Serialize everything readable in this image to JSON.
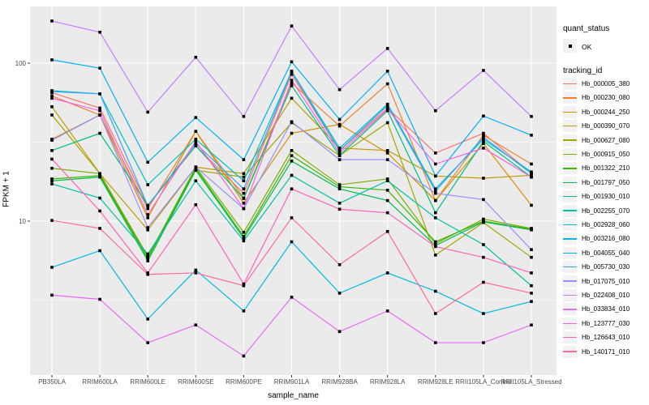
{
  "chart_data": {
    "type": "line",
    "title": "",
    "xlabel": "sample_name",
    "ylabel": "FPKM + 1",
    "yscale": "log10",
    "ylim": [
      1.05,
      230
    ],
    "grid": true,
    "legend_position": "right",
    "point_color": "#000000",
    "panel_bg": "#ebebeb",
    "gridline_color": "#ffffff",
    "y_ticks": [
      {
        "label": "100",
        "value": 100
      },
      {
        "label": "10",
        "value": 10
      }
    ],
    "y_gridlines_major": [
      100,
      10
    ],
    "y_gridlines_minor": [
      31.62,
      3.162
    ],
    "categories": [
      "PB350LA",
      "RRIM600LA",
      "RRIM600LE",
      "RRIM600SE",
      "RRIM600PE",
      "RRIM901LA",
      "RRIM928BA",
      "RRIM928LA",
      "RRIM928LE",
      "RRII105LA_Control",
      "RRII105LA_Stressed"
    ],
    "legend": {
      "quant_status_title": "quant_status",
      "quant_status_items": [
        {
          "label": "OK"
        }
      ],
      "tracking_title": "tracking_id"
    },
    "series": [
      {
        "name": "Hb_000005_380",
        "color": "#F8766D",
        "values": [
          65,
          52,
          12.5,
          30,
          15,
          85,
          28,
          52,
          27,
          36,
          20
        ]
      },
      {
        "name": "Hb_000230_080",
        "color": "#EA8331",
        "values": [
          62,
          47,
          12,
          37,
          14,
          75,
          40,
          74,
          13.5,
          35,
          23
        ]
      },
      {
        "name": "Hb_000244_250",
        "color": "#D89000",
        "values": [
          33,
          47,
          10.5,
          37,
          13,
          36,
          41,
          27,
          13.5,
          31,
          12.6
        ]
      },
      {
        "name": "Hb_000390_070",
        "color": "#C09B00",
        "values": [
          53,
          20,
          8.8,
          22,
          20,
          60,
          29,
          28,
          19.3,
          18.7,
          19.5
        ]
      },
      {
        "name": "Hb_000627_080",
        "color": "#A3A500",
        "values": [
          47,
          20,
          6,
          21,
          19,
          42,
          26,
          42,
          6.1,
          9.8,
          5.9
        ]
      },
      {
        "name": "Hb_000915_050",
        "color": "#7CAE00",
        "values": [
          21.6,
          20,
          5.9,
          22,
          8.5,
          28,
          17,
          18.5,
          7.2,
          10.3,
          9
        ]
      },
      {
        "name": "Hb_001322_210",
        "color": "#39B600",
        "values": [
          18.5,
          19.4,
          5.8,
          21.5,
          8,
          26,
          16.5,
          15.7,
          7.4,
          10,
          8.9
        ]
      },
      {
        "name": "Hb_001797_050",
        "color": "#00BB4E",
        "values": [
          18,
          19,
          5.6,
          21,
          7.8,
          24,
          16,
          13.5,
          7,
          9.9,
          8.8
        ]
      },
      {
        "name": "Hb_001930_010",
        "color": "#00BF7D",
        "values": [
          28,
          36,
          12.6,
          30,
          13.9,
          72,
          26,
          50,
          11.3,
          32,
          19
        ]
      },
      {
        "name": "Hb_002255_070",
        "color": "#00C1A3",
        "values": [
          17.2,
          14,
          6.2,
          18,
          7.5,
          19.5,
          13,
          18,
          10.5,
          7.1,
          3.9
        ]
      },
      {
        "name": "Hb_002928_060",
        "color": "#00BFC4",
        "values": [
          67,
          64,
          17,
          33,
          18,
          89,
          29,
          55,
          16,
          33,
          20.5
        ]
      },
      {
        "name": "Hb_003216_080",
        "color": "#00BADE",
        "values": [
          5.1,
          6.5,
          2.4,
          4.9,
          2.7,
          7.4,
          3.5,
          4.7,
          3.6,
          2.6,
          3.1
        ]
      },
      {
        "name": "Hb_004055_040",
        "color": "#00B0F6",
        "values": [
          105,
          93,
          23.6,
          45.3,
          24.5,
          102,
          44,
          89,
          19.3,
          46.3,
          35
        ]
      },
      {
        "name": "Hb_005730_030",
        "color": "#35A2FF",
        "values": [
          66,
          64,
          12.5,
          31,
          16,
          88,
          28,
          54,
          15.5,
          34,
          20
        ]
      },
      {
        "name": "Hb_017075_010",
        "color": "#9590FF",
        "values": [
          32.5,
          47,
          9.1,
          22,
          12,
          42.6,
          24.5,
          24.5,
          15,
          13.7,
          6.6
        ]
      },
      {
        "name": "Hb_022408_010",
        "color": "#C77CFF",
        "values": [
          185,
          157,
          49,
          109,
          46,
          172,
          68,
          124,
          50,
          90,
          46
        ]
      },
      {
        "name": "Hb_033834_010",
        "color": "#E76BF3",
        "values": [
          3.4,
          3.2,
          1.7,
          2.2,
          1.4,
          3.3,
          2,
          2.7,
          1.7,
          1.7,
          2.2
        ]
      },
      {
        "name": "Hb_123777_030",
        "color": "#FA62DB",
        "values": [
          60,
          50,
          11,
          32,
          12,
          78,
          27,
          51,
          23,
          29,
          19
        ]
      },
      {
        "name": "Hb_126643_010",
        "color": "#FF62BC",
        "values": [
          24.7,
          11.6,
          4.7,
          12.7,
          4,
          16,
          11.9,
          11.3,
          6.9,
          5.9,
          4.7
        ]
      },
      {
        "name": "Hb_140171_010",
        "color": "#FF6A98",
        "values": [
          10.1,
          9,
          4.6,
          4.7,
          3.9,
          10.5,
          5.3,
          8.6,
          2.6,
          4.1,
          3.5
        ]
      }
    ],
    "quant_status_of_all_points": "OK"
  }
}
